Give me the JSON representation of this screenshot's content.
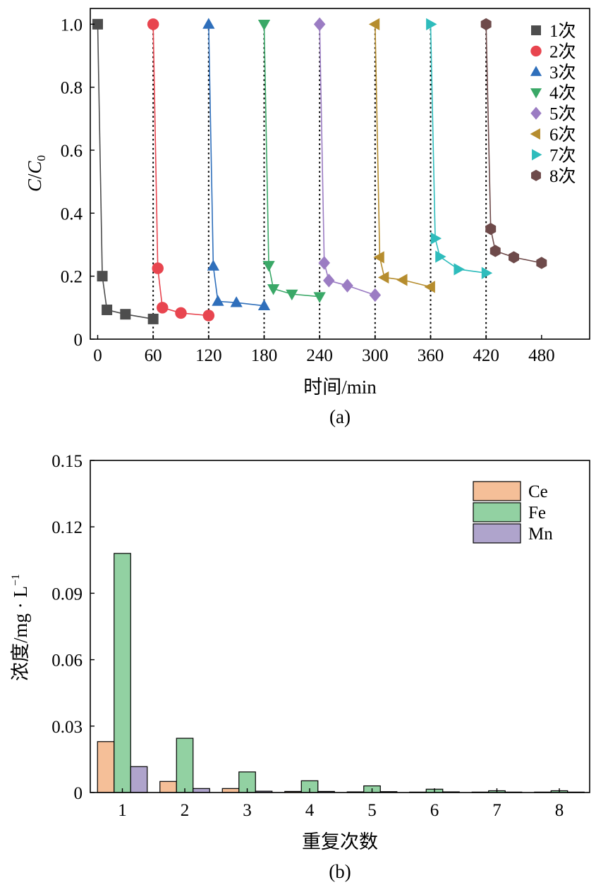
{
  "chart_data": [
    {
      "panel_label": "(a)",
      "type": "line",
      "xlabel": "时间/min",
      "ylabel_main": "C",
      "ylabel_denom_main": "C",
      "ylabel_denom_sub": "0",
      "xlim": [
        -8,
        532
      ],
      "ylim": [
        0,
        1.05
      ],
      "xticks": [
        0,
        60,
        120,
        180,
        240,
        300,
        360,
        420,
        480
      ],
      "yticks": [
        0,
        0.2,
        0.4,
        0.6,
        0.8,
        1.0
      ],
      "ytick_labels": [
        "0",
        "0.2",
        "0.4",
        "0.6",
        "0.8",
        "1.0"
      ],
      "vlines": [
        60,
        120,
        180,
        240,
        300,
        360,
        420
      ],
      "legend_position": "top-right",
      "series": [
        {
          "name": "1次",
          "marker": "square",
          "color": "#4d4d4d",
          "x": [
            0,
            5,
            10,
            30,
            60
          ],
          "y": [
            1.0,
            0.2,
            0.093,
            0.079,
            0.064
          ]
        },
        {
          "name": "2次",
          "marker": "circle",
          "color": "#e8454f",
          "x": [
            60,
            65,
            70,
            90,
            120
          ],
          "y": [
            1.0,
            0.225,
            0.1,
            0.083,
            0.075
          ]
        },
        {
          "name": "3次",
          "marker": "triangle-up",
          "color": "#2f6fbb",
          "x": [
            120,
            125,
            130,
            150,
            180
          ],
          "y": [
            1.0,
            0.232,
            0.12,
            0.116,
            0.106
          ]
        },
        {
          "name": "4次",
          "marker": "triangle-down",
          "color": "#3aa867",
          "x": [
            180,
            185,
            190,
            210,
            240
          ],
          "y": [
            1.0,
            0.234,
            0.16,
            0.143,
            0.135
          ]
        },
        {
          "name": "5次",
          "marker": "diamond",
          "color": "#9b7cc3",
          "x": [
            240,
            245,
            250,
            270,
            300
          ],
          "y": [
            1.0,
            0.242,
            0.186,
            0.17,
            0.14
          ]
        },
        {
          "name": "6次",
          "marker": "triangle-left",
          "color": "#b68d2e",
          "x": [
            300,
            305,
            310,
            330,
            360
          ],
          "y": [
            1.0,
            0.26,
            0.196,
            0.188,
            0.166
          ]
        },
        {
          "name": "7次",
          "marker": "triangle-right",
          "color": "#2ebcbc",
          "x": [
            360,
            365,
            370,
            390,
            420
          ],
          "y": [
            1.0,
            0.32,
            0.262,
            0.222,
            0.21
          ]
        },
        {
          "name": "8次",
          "marker": "hexagon",
          "color": "#6e4a4a",
          "x": [
            420,
            425,
            430,
            450,
            480
          ],
          "y": [
            1.0,
            0.35,
            0.28,
            0.26,
            0.242
          ]
        }
      ]
    },
    {
      "panel_label": "(b)",
      "type": "bar",
      "xlabel": "重复次数",
      "ylabel": "浓度/mg · L",
      "ylabel_sup": "−1",
      "categories": [
        "1",
        "2",
        "3",
        "4",
        "5",
        "6",
        "7",
        "8"
      ],
      "ylim": [
        0,
        0.15
      ],
      "yticks": [
        0,
        0.03,
        0.06,
        0.09,
        0.12,
        0.15
      ],
      "ytick_labels": [
        "0",
        "0.03",
        "0.06",
        "0.09",
        "0.12",
        "0.15"
      ],
      "legend_position": "top-right",
      "series": [
        {
          "name": "Ce",
          "color": "#f5bf98",
          "values": [
            0.023,
            0.005,
            0.0018,
            0.0005,
            0.0003,
            0.0002,
            0.0002,
            0.0002
          ]
        },
        {
          "name": "Fe",
          "color": "#92d1a2",
          "values": [
            0.108,
            0.0245,
            0.0093,
            0.0053,
            0.003,
            0.0015,
            0.0008,
            0.0008
          ]
        },
        {
          "name": "Mn",
          "color": "#afa4cc",
          "values": [
            0.0117,
            0.0018,
            0.0006,
            0.0005,
            0.0004,
            0.0003,
            0.0002,
            0.0002
          ]
        }
      ]
    }
  ]
}
